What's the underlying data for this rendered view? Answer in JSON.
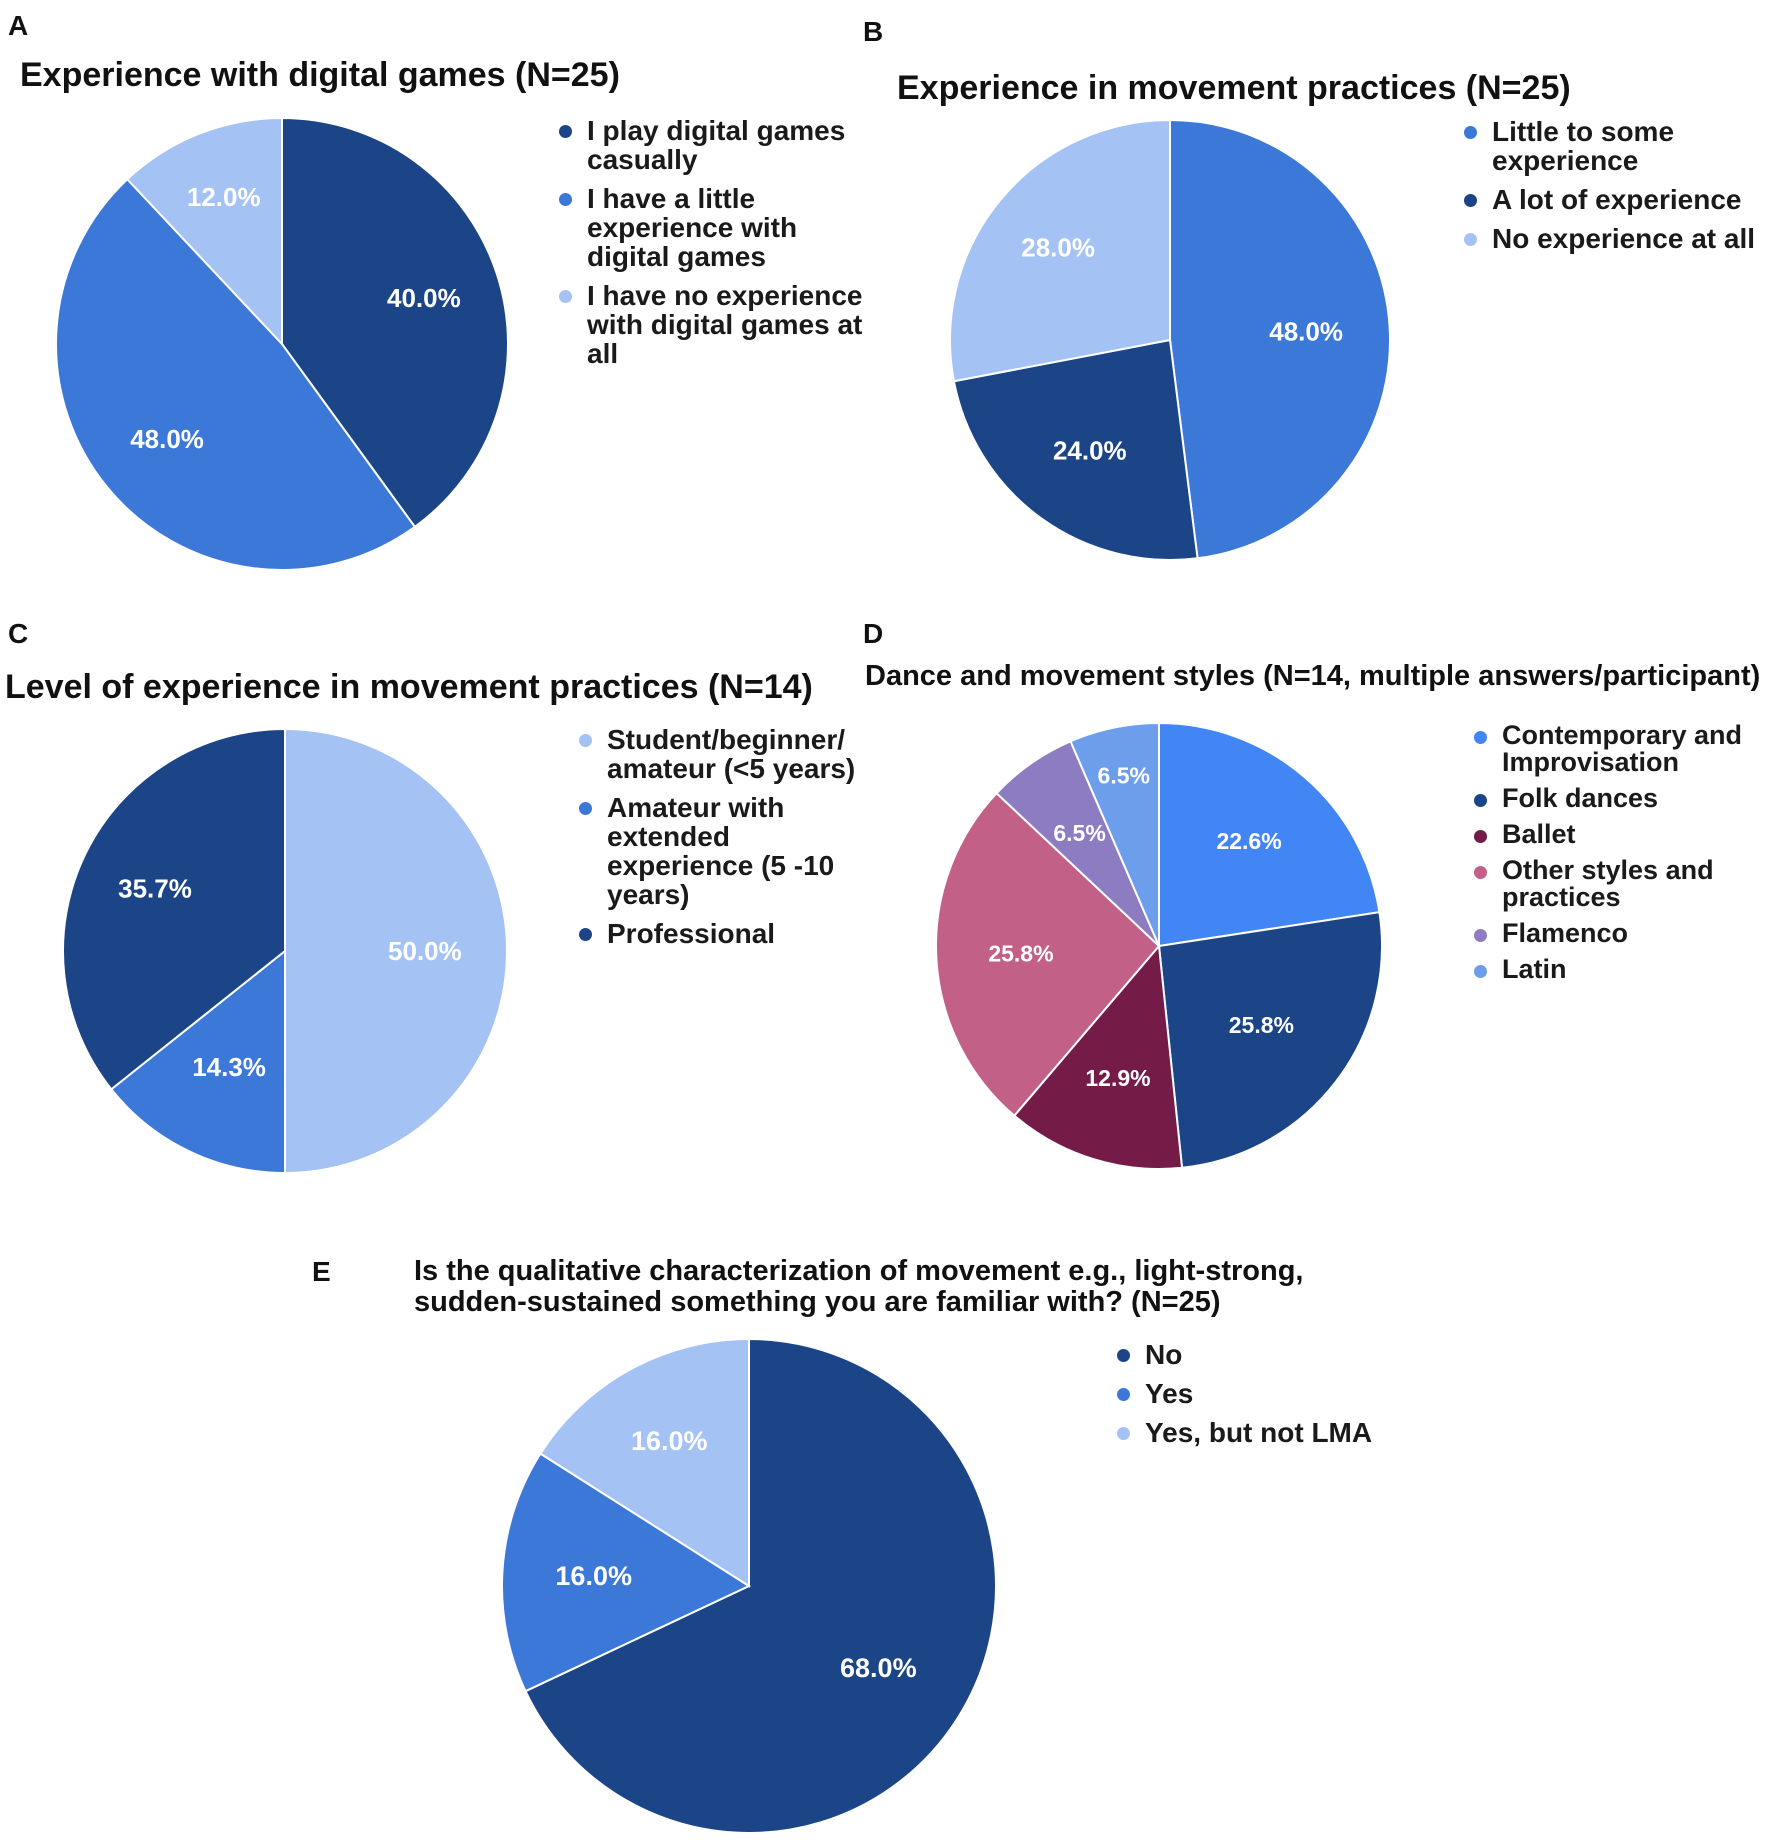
{
  "chart_data": [
    {
      "panel": "A",
      "type": "pie",
      "title": "Experience with digital games (N=25)",
      "labels": [
        "I play digital games casually",
        "I have a little experience with digital games",
        "I have no experience with digital games at all"
      ],
      "values": [
        40.0,
        48.0,
        12.0
      ],
      "data_labels": [
        "40.0%",
        "48.0%",
        "12.0%"
      ],
      "colors": [
        "#1c4587",
        "#3c78d8",
        "#a4c2f4"
      ],
      "legend_placement": "right"
    },
    {
      "panel": "B",
      "type": "pie",
      "title": "Experience in movement practices (N=25)",
      "labels": [
        "Little to some experience",
        "A lot of experience",
        "No experience at all"
      ],
      "values": [
        48.0,
        24.0,
        28.0
      ],
      "data_labels": [
        "48.0%",
        "24.0%",
        "28.0%"
      ],
      "colors": [
        "#3c78d8",
        "#1c4587",
        "#a4c2f4"
      ],
      "legend_placement": "right"
    },
    {
      "panel": "C",
      "type": "pie",
      "title": "Level of experience in movement practices (N=14)",
      "labels": [
        "Student/beginner/ amateur (<5 years)",
        "Amateur with extended experience (5 -10 years)",
        "Professional"
      ],
      "values": [
        50.0,
        14.3,
        35.7
      ],
      "data_labels": [
        "50.0%",
        "14.3%",
        "35.7%"
      ],
      "colors": [
        "#a4c2f4",
        "#3c78d8",
        "#1c4587"
      ],
      "legend_placement": "right"
    },
    {
      "panel": "D",
      "type": "pie",
      "title": "Dance and movement styles (N=14, multiple answers/participant)",
      "labels": [
        "Contemporary and Improvisation",
        "Folk dances",
        "Ballet",
        "Other styles and practices",
        "Flamenco",
        "Latin"
      ],
      "values": [
        22.6,
        25.8,
        12.9,
        25.8,
        6.5,
        6.5
      ],
      "data_labels": [
        "22.6%",
        "25.8%",
        "12.9%",
        "25.8%",
        "6.5%",
        "6.5%"
      ],
      "colors": [
        "#4285f4",
        "#1c4587",
        "#741b47",
        "#c26088",
        "#8e7cc3",
        "#6d9eeb"
      ],
      "legend_placement": "right"
    },
    {
      "panel": "E",
      "type": "pie",
      "title": "Is the qualitative characterization of movement e.g., light-strong, sudden-sustained something you are familiar with? (N=25)",
      "labels": [
        "No",
        "Yes",
        "Yes, but not LMA"
      ],
      "values": [
        68.0,
        16.0,
        16.0
      ],
      "data_labels": [
        "68.0%",
        "16.0%",
        "16.0%"
      ],
      "colors": [
        "#1c4587",
        "#3c78d8",
        "#a4c2f4"
      ],
      "legend_placement": "right"
    }
  ]
}
